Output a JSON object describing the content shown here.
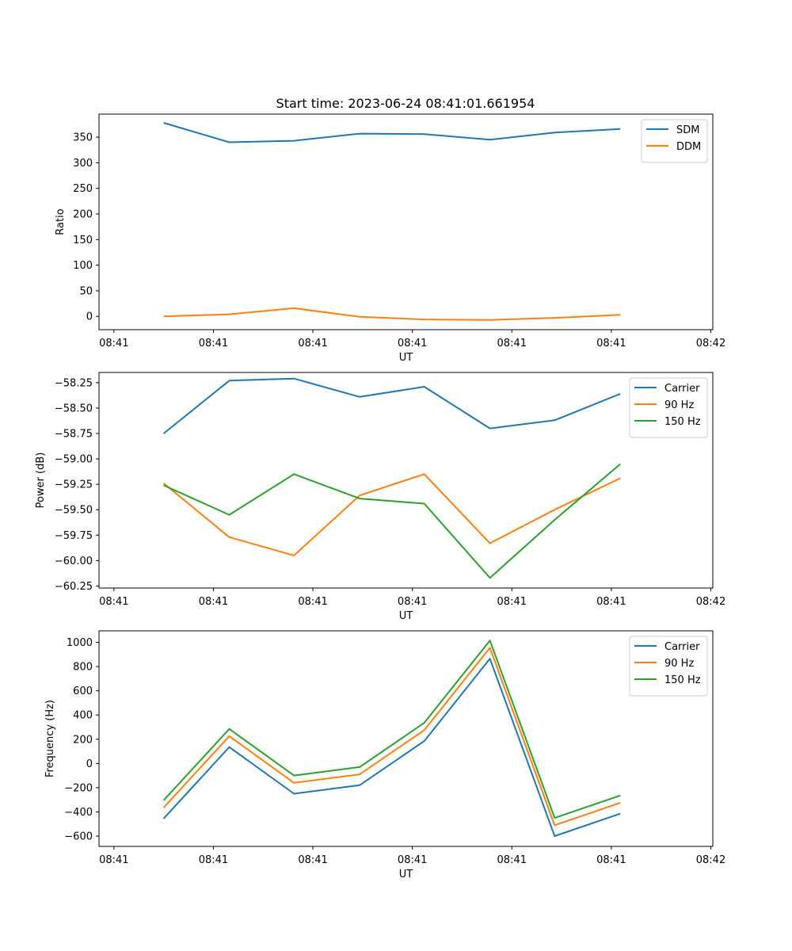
{
  "figure": {
    "title": "Start time: 2023-06-24 08:41:01.661954"
  },
  "chart_data": [
    {
      "type": "line",
      "title": "Start time: 2023-06-24 08:41:01.661954",
      "xlabel": "UT",
      "ylabel": "Ratio",
      "x_tick_labels": [
        "08:41",
        "08:41",
        "08:41",
        "08:41",
        "08:41",
        "08:41",
        "08:42"
      ],
      "x_ticks_seconds": [
        0,
        1,
        2,
        3,
        4,
        5,
        6
      ],
      "xlim_seconds": [
        -0.15,
        6.02
      ],
      "x_seconds": [
        0.5,
        1.16,
        1.81,
        2.47,
        3.12,
        3.78,
        4.43,
        5.09
      ],
      "ylim": [
        -26,
        395
      ],
      "yticks": [
        0,
        50,
        100,
        150,
        200,
        250,
        300,
        350
      ],
      "grid": false,
      "legend_position": "upper right",
      "series": [
        {
          "name": "SDM",
          "color": "#1f77b4",
          "values": [
            378,
            340,
            343,
            357,
            356,
            345,
            359,
            366
          ]
        },
        {
          "name": "DDM",
          "color": "#ff7f0e",
          "values": [
            0,
            4,
            16,
            -1,
            -6,
            -7,
            -3,
            3
          ]
        }
      ]
    },
    {
      "type": "line",
      "xlabel": "UT",
      "ylabel": "Power (dB)",
      "x_tick_labels": [
        "08:41",
        "08:41",
        "08:41",
        "08:41",
        "08:41",
        "08:41",
        "08:42"
      ],
      "x_ticks_seconds": [
        0,
        1,
        2,
        3,
        4,
        5,
        6
      ],
      "xlim_seconds": [
        -0.15,
        6.02
      ],
      "x_seconds": [
        0.5,
        1.16,
        1.81,
        2.47,
        3.12,
        3.78,
        4.43,
        5.09
      ],
      "ylim": [
        -60.27,
        -58.15
      ],
      "yticks": [
        -60.25,
        -60.0,
        -59.75,
        -59.5,
        -59.25,
        -59.0,
        -58.75,
        -58.5,
        -58.25
      ],
      "tick_label_format": "fixed2",
      "grid": false,
      "legend_position": "upper right",
      "series": [
        {
          "name": "Carrier",
          "color": "#1f77b4",
          "values": [
            -58.75,
            -58.23,
            -58.21,
            -58.39,
            -58.29,
            -58.7,
            -58.62,
            -58.36
          ]
        },
        {
          "name": "90 Hz",
          "color": "#ff7f0e",
          "values": [
            -59.24,
            -59.77,
            -59.95,
            -59.36,
            -59.15,
            -59.83,
            -59.5,
            -59.19
          ]
        },
        {
          "name": "150 Hz",
          "color": "#2ca02c",
          "values": [
            -59.26,
            -59.55,
            -59.15,
            -59.39,
            -59.44,
            -60.17,
            -59.6,
            -59.05
          ]
        }
      ]
    },
    {
      "type": "line",
      "xlabel": "UT",
      "ylabel": "Frequency (Hz)",
      "x_tick_labels": [
        "08:41",
        "08:41",
        "08:41",
        "08:41",
        "08:41",
        "08:41",
        "08:42"
      ],
      "x_ticks_seconds": [
        0,
        1,
        2,
        3,
        4,
        5,
        6
      ],
      "xlim_seconds": [
        -0.15,
        6.02
      ],
      "x_seconds": [
        0.5,
        1.16,
        1.81,
        2.47,
        3.12,
        3.78,
        4.43,
        5.09
      ],
      "ylim": [
        -685,
        1095
      ],
      "yticks": [
        -600,
        -400,
        -200,
        0,
        200,
        400,
        600,
        800,
        1000
      ],
      "grid": false,
      "legend_position": "upper right",
      "series": [
        {
          "name": "Carrier",
          "color": "#1f77b4",
          "values": [
            -455,
            135,
            -250,
            -180,
            185,
            865,
            -600,
            -415
          ]
        },
        {
          "name": "90 Hz",
          "color": "#ff7f0e",
          "values": [
            -365,
            225,
            -160,
            -90,
            275,
            955,
            -510,
            -325
          ]
        },
        {
          "name": "150 Hz",
          "color": "#2ca02c",
          "values": [
            -305,
            285,
            -100,
            -30,
            335,
            1015,
            -450,
            -265
          ]
        }
      ]
    }
  ]
}
